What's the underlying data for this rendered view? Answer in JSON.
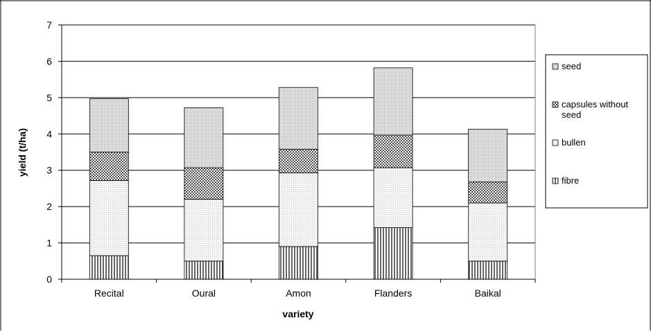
{
  "chart_data": {
    "type": "bar",
    "stacked": true,
    "title": "",
    "xlabel": "variety",
    "ylabel": "yield (t/ha)",
    "ylim": [
      0,
      7
    ],
    "yticks": [
      0,
      1,
      2,
      3,
      4,
      5,
      6,
      7
    ],
    "grid": true,
    "legend_position": "right",
    "categories": [
      "Recital",
      "Oural",
      "Amon",
      "Flanders",
      "Baikal"
    ],
    "series": [
      {
        "name": "fibre",
        "pattern": "vertical-lines",
        "values": [
          0.65,
          0.5,
          0.9,
          1.42,
          0.5
        ]
      },
      {
        "name": "bullen",
        "pattern": "light-dots",
        "values": [
          2.07,
          1.7,
          2.03,
          1.65,
          1.6
        ]
      },
      {
        "name": "capsules without seed",
        "pattern": "dark-dots",
        "values": [
          0.78,
          0.87,
          0.65,
          0.9,
          0.58
        ]
      },
      {
        "name": "seed",
        "pattern": "medium-dots",
        "values": [
          1.47,
          1.65,
          1.7,
          1.85,
          1.45
        ]
      }
    ],
    "legend_order": [
      "seed",
      "capsules without seed",
      "bullen",
      "fibre"
    ]
  }
}
